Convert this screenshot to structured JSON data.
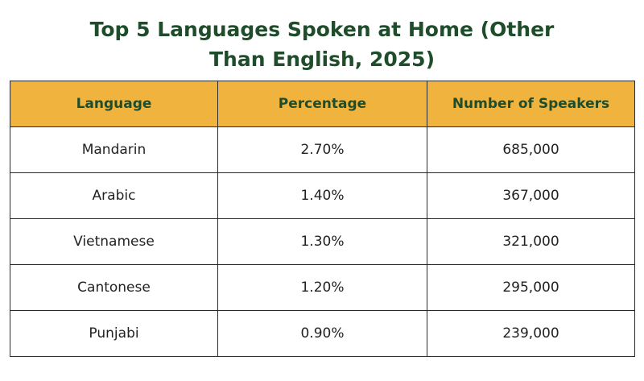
{
  "title": "Top 5 Languages Spoken at Home (Other Than English, 2025)",
  "table": {
    "header": [
      "Language",
      "Percentage",
      "Number of Speakers"
    ],
    "rows": [
      [
        "Mandarin",
        "2.70%",
        "685,000"
      ],
      [
        "Arabic",
        "1.40%",
        "367,000"
      ],
      [
        "Vietnamese",
        "1.30%",
        "321,000"
      ],
      [
        "Cantonese",
        "1.20%",
        "295,000"
      ],
      [
        "Punjabi",
        "0.90%",
        "239,000"
      ]
    ]
  }
}
